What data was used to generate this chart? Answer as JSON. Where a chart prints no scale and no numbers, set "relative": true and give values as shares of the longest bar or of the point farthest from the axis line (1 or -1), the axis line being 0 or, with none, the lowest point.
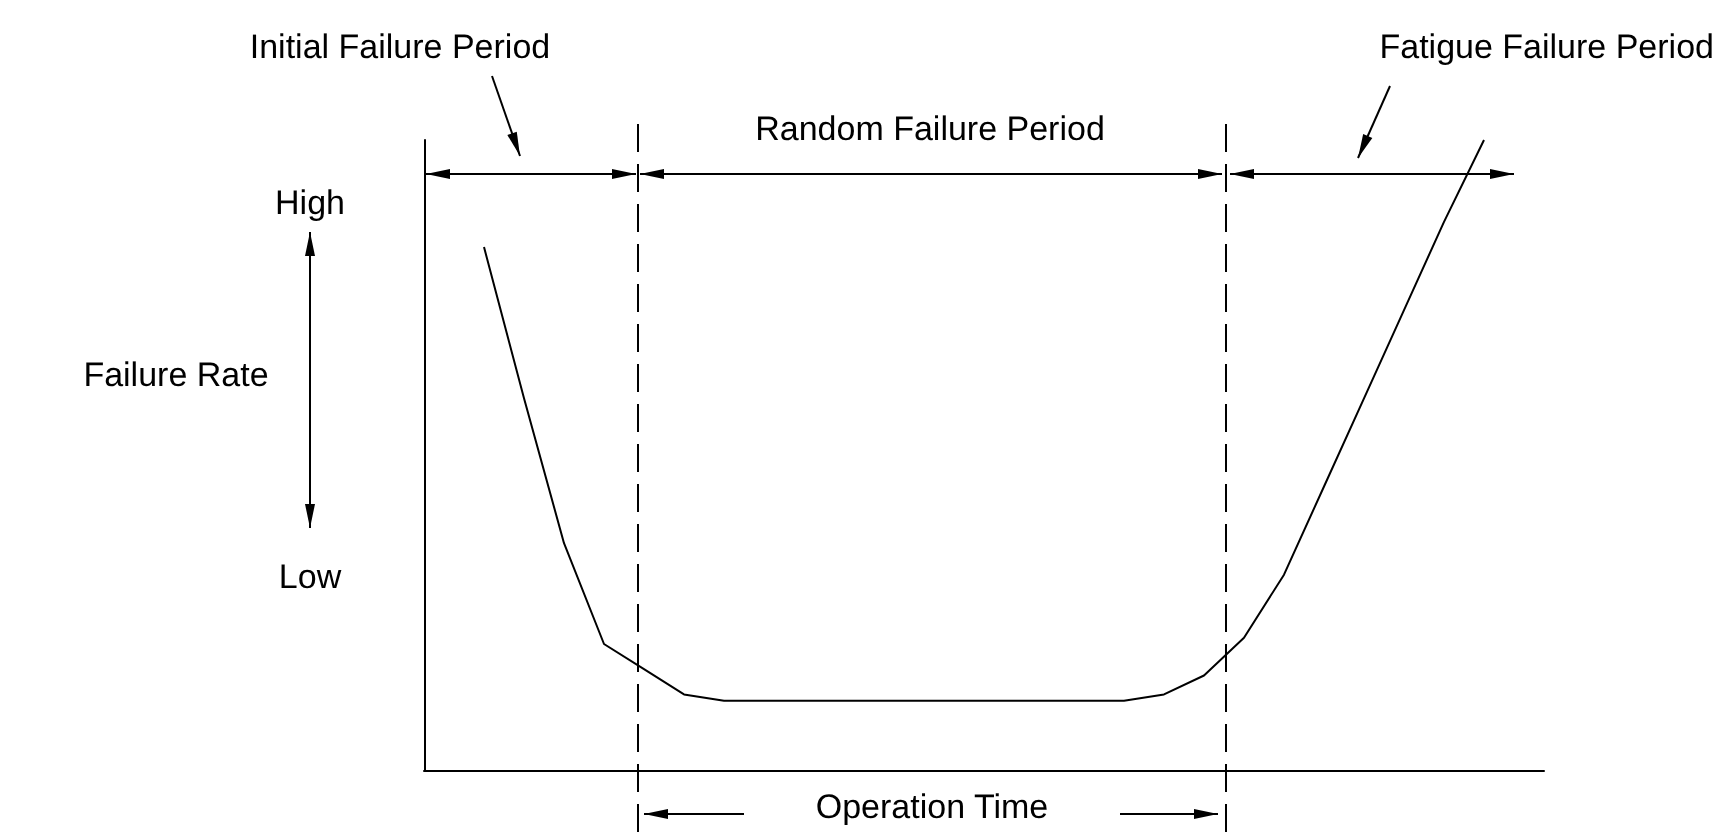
{
  "chart_data": {
    "type": "line",
    "relative": true,
    "categories": [
      null,
      null,
      null,
      null,
      null,
      null,
      null,
      null,
      null,
      null,
      null,
      null,
      null,
      null,
      null,
      null,
      null,
      null,
      null,
      null,
      null,
      null,
      null,
      null,
      null,
      null,
      null,
      null
    ],
    "series": [
      {
        "color": "#000000",
        "values": [
          null,
          0.83,
          0.59,
          0.36,
          0.2,
          0.16,
          0.12,
          0.11,
          0.11,
          0.11,
          0.11,
          0.11,
          0.11,
          0.11,
          0.11,
          0.11,
          0.11,
          0.11,
          0.12,
          0.15,
          0.21,
          0.31,
          0.45,
          0.59,
          0.73,
          0.87,
          1,
          null
        ]
      }
    ],
    "ylabel": "Failure Rate",
    "xlabel": "Operation Time",
    "annotations": [
      "Initial Failure Period",
      "Random Failure Period",
      "Fatigue Failure Period",
      "High",
      "Low"
    ],
    "marker": "none",
    "line_style": "solid",
    "grid": false
  }
}
